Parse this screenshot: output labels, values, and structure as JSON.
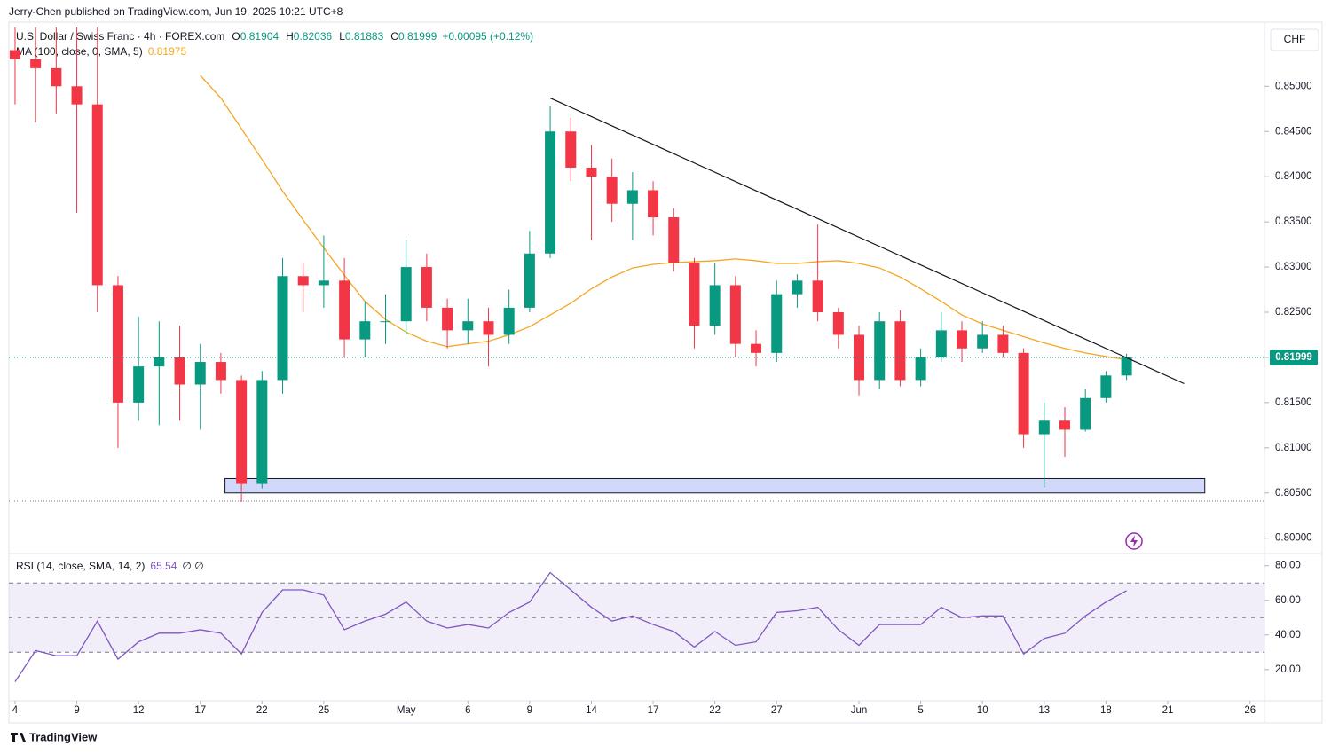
{
  "header": {
    "byline": "Jerry-Chen published on TradingView.com, Jun 19, 2025 10:21 UTC+8",
    "currency": "CHF",
    "logo": "TradingView"
  },
  "chart_data": [
    {
      "type": "candlestick",
      "symbol": "U.S. Dollar / Swiss Franc · 4h · FOREX.com",
      "legend_ohlc": [
        {
          "label": "O",
          "value": 0.81904
        },
        {
          "label": "H",
          "value": 0.82036
        },
        {
          "label": "L",
          "value": 0.81883
        },
        {
          "label": "C",
          "value": 0.81999
        }
      ],
      "change": "+0.00095 (+0.12%)",
      "x": [
        0,
        1,
        2,
        3,
        4,
        5,
        6,
        7,
        8,
        9,
        10,
        11,
        12,
        13,
        14,
        15,
        16,
        17,
        18,
        19,
        20,
        21,
        22,
        23,
        24,
        25,
        26,
        27,
        28,
        29,
        30,
        31,
        32,
        33,
        34,
        35,
        36,
        37,
        38,
        39,
        40,
        41,
        42,
        43,
        44,
        45,
        46,
        47,
        48,
        49,
        50,
        51,
        52,
        53,
        54
      ],
      "open": [
        0.854,
        0.853,
        0.852,
        0.85,
        0.848,
        0.828,
        0.815,
        0.819,
        0.82,
        0.817,
        0.8195,
        0.8175,
        0.806,
        0.8175,
        0.829,
        0.828,
        0.8285,
        0.822,
        0.824,
        0.824,
        0.83,
        0.8255,
        0.823,
        0.824,
        0.8225,
        0.8255,
        0.8315,
        0.845,
        0.841,
        0.84,
        0.837,
        0.8385,
        0.8355,
        0.8305,
        0.8235,
        0.828,
        0.8215,
        0.8205,
        0.827,
        0.8285,
        0.825,
        0.8225,
        0.8175,
        0.824,
        0.8175,
        0.82,
        0.823,
        0.821,
        0.8225,
        0.8205,
        0.8115,
        0.813,
        0.812,
        0.8155,
        0.818
      ],
      "high": [
        0.8565,
        0.8565,
        0.8565,
        0.8565,
        0.8565,
        0.829,
        0.8245,
        0.824,
        0.8235,
        0.8215,
        0.8205,
        0.818,
        0.8185,
        0.831,
        0.8305,
        0.8335,
        0.831,
        0.8262,
        0.827,
        0.833,
        0.8315,
        0.8265,
        0.8265,
        0.8255,
        0.8275,
        0.834,
        0.8478,
        0.8465,
        0.8435,
        0.842,
        0.8405,
        0.8395,
        0.8365,
        0.831,
        0.8305,
        0.829,
        0.823,
        0.8285,
        0.8292,
        0.8347,
        0.8255,
        0.8235,
        0.825,
        0.8252,
        0.821,
        0.825,
        0.824,
        0.824,
        0.8235,
        0.821,
        0.815,
        0.8145,
        0.8165,
        0.8185,
        0.8204
      ],
      "low": [
        0.848,
        0.846,
        0.847,
        0.836,
        0.825,
        0.81,
        0.813,
        0.8125,
        0.813,
        0.812,
        0.816,
        0.804,
        0.8055,
        0.816,
        0.825,
        0.8255,
        0.82,
        0.82,
        0.8215,
        0.8225,
        0.824,
        0.821,
        0.8215,
        0.819,
        0.8215,
        0.825,
        0.831,
        0.8395,
        0.833,
        0.835,
        0.833,
        0.8335,
        0.8295,
        0.821,
        0.8225,
        0.82,
        0.819,
        0.8195,
        0.8255,
        0.824,
        0.821,
        0.8158,
        0.8165,
        0.8168,
        0.8168,
        0.8195,
        0.8195,
        0.8205,
        0.82,
        0.81,
        0.8056,
        0.809,
        0.8118,
        0.815,
        0.8175
      ],
      "close": [
        0.853,
        0.852,
        0.85,
        0.848,
        0.828,
        0.815,
        0.819,
        0.82,
        0.817,
        0.8195,
        0.8175,
        0.806,
        0.8175,
        0.829,
        0.828,
        0.8285,
        0.822,
        0.824,
        0.824,
        0.83,
        0.8255,
        0.823,
        0.824,
        0.8225,
        0.8255,
        0.8315,
        0.845,
        0.841,
        0.84,
        0.837,
        0.8385,
        0.8355,
        0.8305,
        0.8235,
        0.828,
        0.8215,
        0.8205,
        0.827,
        0.8285,
        0.825,
        0.8225,
        0.8175,
        0.824,
        0.8175,
        0.82,
        0.823,
        0.821,
        0.8225,
        0.8205,
        0.8115,
        0.813,
        0.812,
        0.8155,
        0.818,
        0.82
      ],
      "up_color": "#089981",
      "down_color": "#f23645",
      "series": [
        {
          "name": "MA (100, close, 0, SMA, 5)",
          "color": "#f5a623",
          "last_value": 0.81975,
          "values": [
            null,
            null,
            null,
            null,
            null,
            null,
            null,
            null,
            null,
            0.8512,
            0.8487,
            0.8453,
            0.8419,
            0.8384,
            0.8352,
            0.8321,
            0.8291,
            0.8262,
            0.8242,
            0.8228,
            0.8218,
            0.8212,
            0.8215,
            0.8218,
            0.8225,
            0.8234,
            0.8247,
            0.826,
            0.8276,
            0.8289,
            0.8299,
            0.8303,
            0.8305,
            0.8306,
            0.8307,
            0.8309,
            0.8307,
            0.8304,
            0.8304,
            0.8306,
            0.8307,
            0.8304,
            0.8299,
            0.8289,
            0.8276,
            0.8262,
            0.8247,
            0.8237,
            0.823,
            0.8223,
            0.8216,
            0.821,
            0.8205,
            0.8201,
            0.81975
          ]
        }
      ],
      "last_price": 0.81999,
      "trendline": {
        "x": [
          26,
          56.8
        ],
        "y": [
          0.8487,
          0.8171
        ],
        "color": "#131722"
      },
      "zone": {
        "x": [
          10.2,
          57.8
        ],
        "y": [
          0.805,
          0.8066
        ],
        "color": "#d1d8fa"
      },
      "hline": 0.8041,
      "xlim": [
        -0.3,
        60.7
      ],
      "ylim": [
        0.7985,
        0.8568
      ],
      "yticks": [
        {
          "value": 0.8,
          "label": "0.80000"
        },
        {
          "value": 0.805,
          "label": "0.80500"
        },
        {
          "value": 0.81,
          "label": "0.81000"
        },
        {
          "value": 0.815,
          "label": "0.81500"
        },
        {
          "value": 0.82,
          "label": "0.82000"
        },
        {
          "value": 0.825,
          "label": "0.82500"
        },
        {
          "value": 0.83,
          "label": "0.83000"
        },
        {
          "value": 0.835,
          "label": "0.83500"
        },
        {
          "value": 0.84,
          "label": "0.84000"
        },
        {
          "value": 0.845,
          "label": "0.84500"
        },
        {
          "value": 0.85,
          "label": "0.85000"
        }
      ]
    },
    {
      "type": "line",
      "name": "RSI (14, close, SMA, 14, 2)",
      "last_value": 65.54,
      "extra_label": "∅ ∅",
      "color": "#7e57c2",
      "band": [
        30,
        70
      ],
      "midline": 50,
      "x": [
        0,
        1,
        2,
        3,
        4,
        5,
        6,
        7,
        8,
        9,
        10,
        11,
        12,
        13,
        14,
        15,
        16,
        17,
        18,
        19,
        20,
        21,
        22,
        23,
        24,
        25,
        26,
        27,
        28,
        29,
        30,
        31,
        32,
        33,
        34,
        35,
        36,
        37,
        38,
        39,
        40,
        41,
        42,
        43,
        44,
        45,
        46,
        47,
        48,
        49,
        50,
        51,
        52,
        53,
        54
      ],
      "values": [
        13,
        31,
        28,
        28,
        48,
        26,
        36,
        41,
        41,
        43,
        41,
        29,
        53,
        66,
        66,
        63,
        43,
        48,
        52,
        59,
        48,
        44,
        46,
        44,
        53,
        59,
        76,
        66,
        56,
        48,
        51,
        46,
        42,
        33,
        42,
        34,
        36,
        53,
        54,
        56,
        43,
        34,
        46,
        46,
        46,
        56,
        50,
        51,
        51,
        29,
        38,
        41,
        51,
        59,
        65.54
      ],
      "xlim": [
        -0.3,
        60.7
      ],
      "ylim": [
        3,
        86
      ],
      "yticks": [
        {
          "value": 20,
          "label": "20.00"
        },
        {
          "value": 40,
          "label": "40.00"
        },
        {
          "value": 60,
          "label": "60.00"
        },
        {
          "value": 80,
          "label": "80.00"
        }
      ],
      "xticks": [
        {
          "value": 0,
          "label": "4"
        },
        {
          "value": 3,
          "label": "9"
        },
        {
          "value": 6,
          "label": "12"
        },
        {
          "value": 9,
          "label": "17"
        },
        {
          "value": 12,
          "label": "22"
        },
        {
          "value": 15,
          "label": "25"
        },
        {
          "value": 19,
          "label": "May"
        },
        {
          "value": 22,
          "label": "6"
        },
        {
          "value": 25,
          "label": "9"
        },
        {
          "value": 28,
          "label": "14"
        },
        {
          "value": 31,
          "label": "17"
        },
        {
          "value": 34,
          "label": "22"
        },
        {
          "value": 37,
          "label": "27"
        },
        {
          "value": 41,
          "label": "Jun"
        },
        {
          "value": 44,
          "label": "5"
        },
        {
          "value": 47,
          "label": "10"
        },
        {
          "value": 50,
          "label": "13"
        },
        {
          "value": 53,
          "label": "18"
        },
        {
          "value": 56,
          "label": "21"
        },
        {
          "value": 60,
          "label": "26"
        }
      ]
    }
  ]
}
